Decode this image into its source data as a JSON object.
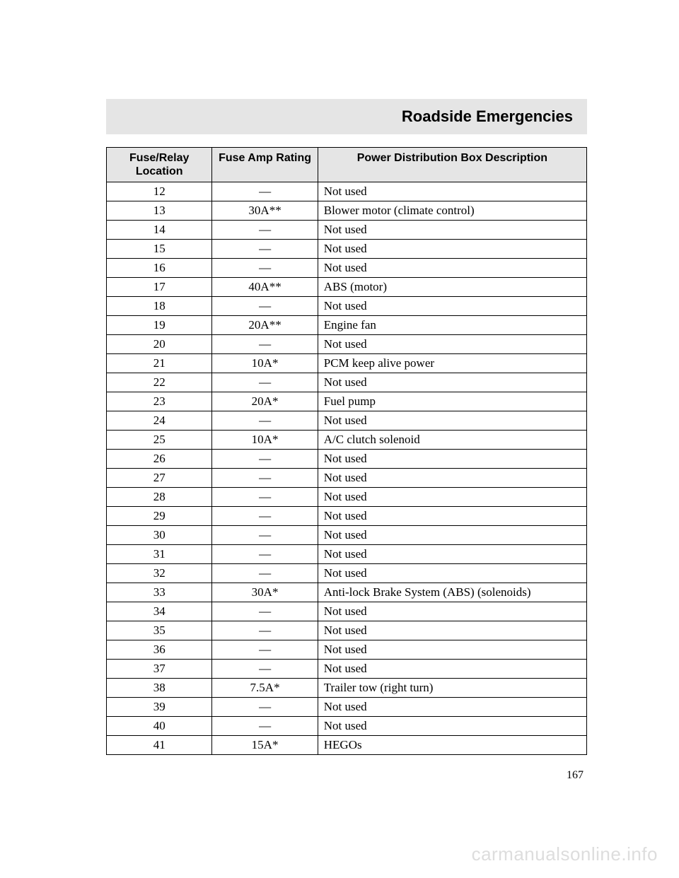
{
  "header": {
    "title": "Roadside Emergencies"
  },
  "table": {
    "columns": [
      "Fuse/Relay Location",
      "Fuse Amp Rating",
      "Power Distribution Box Description"
    ],
    "rows": [
      {
        "loc": "12",
        "rating": "—",
        "desc": "Not used"
      },
      {
        "loc": "13",
        "rating": "30A**",
        "desc": "Blower motor (climate control)"
      },
      {
        "loc": "14",
        "rating": "—",
        "desc": "Not used"
      },
      {
        "loc": "15",
        "rating": "—",
        "desc": "Not used"
      },
      {
        "loc": "16",
        "rating": "—",
        "desc": "Not used"
      },
      {
        "loc": "17",
        "rating": "40A**",
        "desc": "ABS (motor)"
      },
      {
        "loc": "18",
        "rating": "—",
        "desc": "Not used"
      },
      {
        "loc": "19",
        "rating": "20A**",
        "desc": "Engine fan"
      },
      {
        "loc": "20",
        "rating": "—",
        "desc": "Not used"
      },
      {
        "loc": "21",
        "rating": "10A*",
        "desc": "PCM keep alive power"
      },
      {
        "loc": "22",
        "rating": "—",
        "desc": "Not used"
      },
      {
        "loc": "23",
        "rating": "20A*",
        "desc": "Fuel pump"
      },
      {
        "loc": "24",
        "rating": "—",
        "desc": "Not used"
      },
      {
        "loc": "25",
        "rating": "10A*",
        "desc": "A/C clutch solenoid"
      },
      {
        "loc": "26",
        "rating": "—",
        "desc": "Not used"
      },
      {
        "loc": "27",
        "rating": "—",
        "desc": "Not used"
      },
      {
        "loc": "28",
        "rating": "—",
        "desc": "Not used"
      },
      {
        "loc": "29",
        "rating": "—",
        "desc": "Not used"
      },
      {
        "loc": "30",
        "rating": "—",
        "desc": "Not used"
      },
      {
        "loc": "31",
        "rating": "—",
        "desc": "Not used"
      },
      {
        "loc": "32",
        "rating": "—",
        "desc": "Not used"
      },
      {
        "loc": "33",
        "rating": "30A*",
        "desc": "Anti-lock Brake System (ABS) (solenoids)"
      },
      {
        "loc": "34",
        "rating": "—",
        "desc": "Not used"
      },
      {
        "loc": "35",
        "rating": "—",
        "desc": "Not used"
      },
      {
        "loc": "36",
        "rating": "—",
        "desc": "Not used"
      },
      {
        "loc": "37",
        "rating": "—",
        "desc": "Not used"
      },
      {
        "loc": "38",
        "rating": "7.5A*",
        "desc": "Trailer tow (right turn)"
      },
      {
        "loc": "39",
        "rating": "—",
        "desc": "Not used"
      },
      {
        "loc": "40",
        "rating": "—",
        "desc": "Not used"
      },
      {
        "loc": "41",
        "rating": "15A*",
        "desc": "HEGOs"
      }
    ]
  },
  "page_number": "167",
  "watermark": "carmanualsonline.info"
}
